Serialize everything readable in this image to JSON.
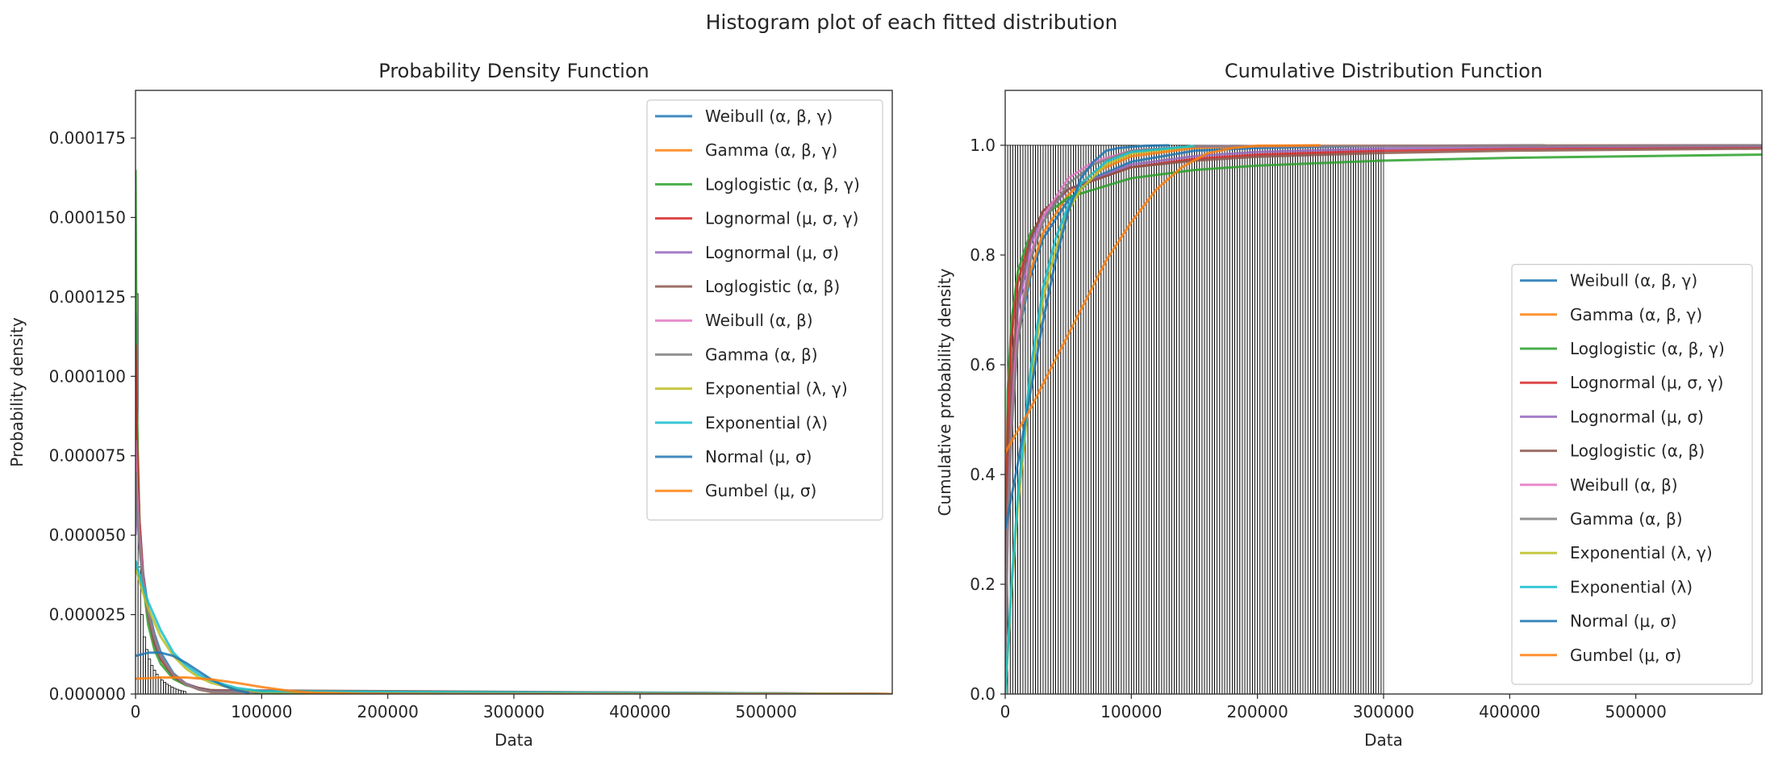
{
  "figure_title": "Histogram plot of each fitted distribution",
  "colors": {
    "axis": "#262626",
    "hist_edge": "#000000",
    "tab_blue": "#1f77b4",
    "tab_orange": "#ff7f0e",
    "tab_green": "#2ca02c",
    "tab_red": "#d62728",
    "tab_purple": "#9467bd",
    "tab_brown": "#8c564b",
    "tab_pink": "#e377c2",
    "tab_gray": "#7f7f7f",
    "tab_olive": "#bcbd22",
    "tab_cyan": "#17becf"
  },
  "legend_entries": [
    {
      "name": "Weibull",
      "params": "(α, β, γ)",
      "color": "#1f77b4"
    },
    {
      "name": "Gamma",
      "params": "(α, β, γ)",
      "color": "#ff7f0e"
    },
    {
      "name": "Loglogistic",
      "params": "(α, β, γ)",
      "color": "#2ca02c"
    },
    {
      "name": "Lognormal",
      "params": "(μ, σ, γ)",
      "color": "#d62728"
    },
    {
      "name": "Lognormal",
      "params": "(μ, σ)",
      "color": "#9467bd"
    },
    {
      "name": "Loglogistic",
      "params": "(α, β)",
      "color": "#8c564b"
    },
    {
      "name": "Weibull",
      "params": "(α, β)",
      "color": "#e377c2"
    },
    {
      "name": "Gamma",
      "params": "(α, β)",
      "color": "#7f7f7f"
    },
    {
      "name": "Exponential",
      "params": "(λ, γ)",
      "color": "#bcbd22"
    },
    {
      "name": "Exponential",
      "params": "(λ)",
      "color": "#17becf"
    },
    {
      "name": "Normal",
      "params": "(μ, σ)",
      "color": "#1f77b4"
    },
    {
      "name": "Gumbel",
      "params": "(μ, σ)",
      "color": "#ff7f0e"
    }
  ],
  "chart_data": [
    {
      "type": "line",
      "title": "Probability Density Function",
      "xlabel": "Data",
      "ylabel": "Probability density",
      "xlim": [
        0,
        600000
      ],
      "ylim": [
        0,
        0.00019
      ],
      "xticks": [
        0,
        100000,
        200000,
        300000,
        400000,
        500000
      ],
      "xtick_labels": [
        "0",
        "100000",
        "200000",
        "300000",
        "400000",
        "500000"
      ],
      "yticks": [
        0,
        2.5e-05,
        5e-05,
        7.5e-05,
        0.0001,
        0.000125,
        0.00015,
        0.000175
      ],
      "ytick_labels": [
        "0.000000",
        "0.000025",
        "0.000050",
        "0.000075",
        "0.000100",
        "0.000125",
        "0.000150",
        "0.000175"
      ],
      "legend_position": "upper right",
      "histogram": {
        "bin_width": 2000,
        "heights": [
          0.000126,
          4e-05,
          2.5e-05,
          1.8e-05,
          1.4e-05,
          1.1e-05,
          9e-06,
          7.5e-06,
          6.2e-06,
          5.2e-06,
          4.4e-06,
          3.7e-06,
          3.1e-06,
          2.6e-06,
          2.2e-06,
          1.8e-06,
          1.5e-06,
          1.2e-06,
          1e-06,
          8e-07
        ]
      },
      "series": [
        {
          "name": "Weibull (α, β, γ)",
          "color": "#1f77b4",
          "x": [
            0,
            1000,
            3000,
            6000,
            10000,
            15000,
            20000,
            30000,
            40000,
            50000,
            60000,
            600000
          ],
          "y": [
            0.00012,
            8e-05,
            5.5e-05,
            3.8e-05,
            2.7e-05,
            1.9e-05,
            1.3e-05,
            6.5e-06,
            3.2e-06,
            1.5e-06,
            7e-07,
            0
          ]
        },
        {
          "name": "Gamma (α, β, γ)",
          "color": "#ff7f0e",
          "x": [
            0,
            1000,
            3000,
            6000,
            10000,
            15000,
            20000,
            30000,
            40000,
            50000,
            60000,
            600000
          ],
          "y": [
            0.0001,
            7e-05,
            5e-05,
            3.5e-05,
            2.5e-05,
            1.7e-05,
            1.2e-05,
            6e-06,
            3e-06,
            1.4e-06,
            6e-07,
            0
          ]
        },
        {
          "name": "Loglogistic (α, β, γ)",
          "color": "#2ca02c",
          "x": [
            0,
            1000,
            3000,
            6000,
            10000,
            15000,
            20000,
            30000,
            40000,
            50000,
            60000,
            100000,
            600000
          ],
          "y": [
            0.000165,
            9e-05,
            5.5e-05,
            3.5e-05,
            2.2e-05,
            1.4e-05,
            9.5e-06,
            4.8e-06,
            2.8e-06,
            1.8e-06,
            1.2e-06,
            4e-07,
            0
          ]
        },
        {
          "name": "Lognormal (μ, σ, γ)",
          "color": "#d62728",
          "x": [
            0,
            1000,
            3000,
            6000,
            10000,
            15000,
            20000,
            30000,
            40000,
            50000,
            60000,
            600000
          ],
          "y": [
            0.00011,
            8e-05,
            5.5e-05,
            3.7e-05,
            2.5e-05,
            1.6e-05,
            1.1e-05,
            5.5e-06,
            3e-06,
            1.7e-06,
            1e-06,
            0
          ]
        },
        {
          "name": "Lognormal (μ, σ)",
          "color": "#9467bd",
          "x": [
            0,
            1000,
            3000,
            6000,
            10000,
            15000,
            20000,
            30000,
            40000,
            50000,
            60000,
            600000
          ],
          "y": [
            5e-05,
            6e-05,
            4.8e-05,
            3.5e-05,
            2.5e-05,
            1.7e-05,
            1.2e-05,
            6e-06,
            3.3e-06,
            1.9e-06,
            1.1e-06,
            0
          ]
        },
        {
          "name": "Loglogistic (α, β)",
          "color": "#8c564b",
          "x": [
            0,
            1000,
            3000,
            6000,
            10000,
            15000,
            20000,
            30000,
            40000,
            50000,
            60000,
            600000
          ],
          "y": [
            6e-05,
            7e-05,
            5.2e-05,
            3.6e-05,
            2.5e-05,
            1.6e-05,
            1.1e-05,
            5.5e-06,
            3.1e-06,
            1.9e-06,
            1.2e-06,
            0
          ]
        },
        {
          "name": "Weibull (α, β)",
          "color": "#e377c2",
          "x": [
            0,
            1000,
            3000,
            6000,
            10000,
            15000,
            20000,
            30000,
            40000,
            50000,
            60000,
            600000
          ],
          "y": [
            8e-05,
            6.5e-05,
            5e-05,
            3.6e-05,
            2.6e-05,
            1.8e-05,
            1.2e-05,
            6.2e-06,
            3.1e-06,
            1.5e-06,
            7e-07,
            0
          ]
        },
        {
          "name": "Gamma (α, β)",
          "color": "#7f7f7f",
          "x": [
            0,
            1000,
            3000,
            6000,
            10000,
            15000,
            20000,
            30000,
            40000,
            50000,
            60000,
            600000
          ],
          "y": [
            7e-05,
            6e-05,
            4.7e-05,
            3.5e-05,
            2.6e-05,
            1.8e-05,
            1.2e-05,
            6.2e-06,
            3.1e-06,
            1.5e-06,
            7e-07,
            0
          ]
        },
        {
          "name": "Exponential (λ, γ)",
          "color": "#bcbd22",
          "x": [
            0,
            5000,
            10000,
            20000,
            30000,
            40000,
            50000,
            60000,
            80000,
            100000,
            600000
          ],
          "y": [
            4e-05,
            3.3e-05,
            2.7e-05,
            1.8e-05,
            1.2e-05,
            8e-06,
            5.3e-06,
            3.5e-06,
            1.5e-06,
            7e-07,
            0
          ]
        },
        {
          "name": "Exponential (λ)",
          "color": "#17becf",
          "x": [
            0,
            5000,
            10000,
            20000,
            30000,
            40000,
            50000,
            60000,
            80000,
            100000,
            600000
          ],
          "y": [
            4.2e-05,
            3.5e-05,
            2.9e-05,
            2e-05,
            1.3e-05,
            9e-06,
            6.2e-06,
            4.2e-06,
            1.9e-06,
            9e-07,
            0
          ]
        },
        {
          "name": "Normal (μ, σ)",
          "color": "#1f77b4",
          "x": [
            0,
            10000,
            20000,
            30000,
            40000,
            50000,
            60000,
            70000,
            80000,
            90000
          ],
          "y": [
            1.2e-05,
            1.3e-05,
            1.3e-05,
            1.2e-05,
            9.8e-06,
            7.2e-06,
            4.6e-06,
            2.6e-06,
            1.2e-06,
            4e-07
          ]
        },
        {
          "name": "Gumbel (μ, σ)",
          "color": "#ff7f0e",
          "x": [
            0,
            20000,
            40000,
            60000,
            80000,
            100000,
            120000,
            140000,
            180000,
            250000,
            400000,
            600000
          ],
          "y": [
            4.8e-06,
            5.2e-06,
            5.2e-06,
            4.6e-06,
            3.5e-06,
            2.2e-06,
            1.1e-06,
            4e-07,
            1e-07,
            0,
            0,
            0
          ]
        }
      ]
    },
    {
      "type": "line",
      "title": "Cumulative Distribution Function",
      "xlabel": "Data",
      "ylabel": "Cumulative probability density",
      "xlim": [
        0,
        600000
      ],
      "ylim": [
        0,
        1.1
      ],
      "xticks": [
        0,
        100000,
        200000,
        300000,
        400000,
        500000
      ],
      "xtick_labels": [
        "0",
        "100000",
        "200000",
        "300000",
        "400000",
        "500000"
      ],
      "yticks": [
        0,
        0.2,
        0.4,
        0.6,
        0.8,
        1.0
      ],
      "ytick_labels": [
        "0.0",
        "0.2",
        "0.4",
        "0.6",
        "0.8",
        "1.0"
      ],
      "legend_position": "lower right",
      "histogram": {
        "bin_width": 2000,
        "x_max": 300000,
        "height": 1.0
      },
      "series": [
        {
          "name": "Weibull (α, β, γ)",
          "color": "#1f77b4",
          "x": [
            0,
            5000,
            10000,
            20000,
            30000,
            50000,
            70000,
            100000,
            150000,
            200000,
            300000,
            428000
          ],
          "y": [
            0.3,
            0.55,
            0.65,
            0.76,
            0.83,
            0.9,
            0.94,
            0.97,
            0.99,
            0.995,
            0.999,
            1.0
          ]
        },
        {
          "name": "Gamma (α, β, γ)",
          "color": "#ff7f0e",
          "x": [
            0,
            5000,
            10000,
            20000,
            30000,
            50000,
            70000,
            100000,
            150000,
            200000,
            600000
          ],
          "y": [
            0.3,
            0.56,
            0.66,
            0.77,
            0.84,
            0.91,
            0.95,
            0.98,
            0.995,
            0.999,
            1.0
          ]
        },
        {
          "name": "Loglogistic (α, β, γ)",
          "color": "#2ca02c",
          "x": [
            0,
            2000,
            5000,
            10000,
            20000,
            30000,
            50000,
            100000,
            150000,
            200000,
            300000,
            400000,
            600000
          ],
          "y": [
            0.1,
            0.55,
            0.68,
            0.77,
            0.84,
            0.87,
            0.905,
            0.94,
            0.955,
            0.963,
            0.972,
            0.977,
            0.983
          ]
        },
        {
          "name": "Lognormal (μ, σ, γ)",
          "color": "#d62728",
          "x": [
            0,
            2000,
            5000,
            10000,
            20000,
            30000,
            50000,
            100000,
            150000,
            200000,
            300000,
            400000,
            600000
          ],
          "y": [
            0.1,
            0.5,
            0.65,
            0.75,
            0.83,
            0.88,
            0.92,
            0.96,
            0.975,
            0.983,
            0.99,
            0.994,
            0.997
          ]
        },
        {
          "name": "Lognormal (μ, σ)",
          "color": "#9467bd",
          "x": [
            0,
            2000,
            5000,
            10000,
            20000,
            30000,
            50000,
            100000,
            150000,
            200000,
            300000,
            400000,
            600000
          ],
          "y": [
            0.05,
            0.35,
            0.55,
            0.7,
            0.82,
            0.87,
            0.92,
            0.965,
            0.98,
            0.988,
            0.994,
            0.997,
            0.999
          ]
        },
        {
          "name": "Loglogistic (α, β)",
          "color": "#8c564b",
          "x": [
            0,
            2000,
            5000,
            10000,
            20000,
            30000,
            50000,
            100000,
            150000,
            200000,
            300000,
            400000,
            600000
          ],
          "y": [
            0.05,
            0.4,
            0.58,
            0.72,
            0.83,
            0.88,
            0.92,
            0.96,
            0.972,
            0.979,
            0.986,
            0.99,
            0.994
          ]
        },
        {
          "name": "Weibull (α, β)",
          "color": "#e377c2",
          "x": [
            0,
            2000,
            5000,
            10000,
            20000,
            30000,
            50000,
            70000,
            100000,
            150000,
            600000
          ],
          "y": [
            0.05,
            0.3,
            0.5,
            0.66,
            0.8,
            0.87,
            0.94,
            0.97,
            0.99,
            0.998,
            1.0
          ]
        },
        {
          "name": "Gamma (α, β)",
          "color": "#7f7f7f",
          "x": [
            0,
            2000,
            5000,
            10000,
            20000,
            30000,
            50000,
            70000,
            100000,
            150000,
            600000
          ],
          "y": [
            0.05,
            0.3,
            0.48,
            0.64,
            0.79,
            0.86,
            0.93,
            0.965,
            0.99,
            0.998,
            1.0
          ]
        },
        {
          "name": "Exponential (λ, γ)",
          "color": "#bcbd22",
          "x": [
            0,
            5000,
            10000,
            20000,
            30000,
            40000,
            50000,
            60000,
            80000,
            100000,
            150000
          ],
          "y": [
            0,
            0.19,
            0.34,
            0.57,
            0.72,
            0.81,
            0.88,
            0.92,
            0.965,
            0.985,
            0.999
          ]
        },
        {
          "name": "Exponential (λ)",
          "color": "#17becf",
          "x": [
            0,
            5000,
            10000,
            20000,
            30000,
            40000,
            50000,
            60000,
            80000,
            100000,
            150000
          ],
          "y": [
            0,
            0.2,
            0.36,
            0.59,
            0.74,
            0.83,
            0.89,
            0.93,
            0.97,
            0.988,
            0.999
          ]
        },
        {
          "name": "Normal (μ, σ)",
          "color": "#1f77b4",
          "x": [
            0,
            10000,
            20000,
            30000,
            40000,
            50000,
            60000,
            70000,
            80000,
            90000,
            110000,
            130000
          ],
          "y": [
            0.3,
            0.42,
            0.55,
            0.68,
            0.79,
            0.88,
            0.94,
            0.97,
            0.99,
            0.995,
            0.999,
            1.0
          ]
        },
        {
          "name": "Gumbel (μ, σ)",
          "color": "#ff7f0e",
          "x": [
            0,
            20000,
            40000,
            60000,
            80000,
            100000,
            120000,
            140000,
            160000,
            180000,
            200000,
            250000
          ],
          "y": [
            0.44,
            0.52,
            0.61,
            0.7,
            0.79,
            0.86,
            0.92,
            0.96,
            0.985,
            0.995,
            0.999,
            1.0
          ]
        }
      ]
    }
  ]
}
